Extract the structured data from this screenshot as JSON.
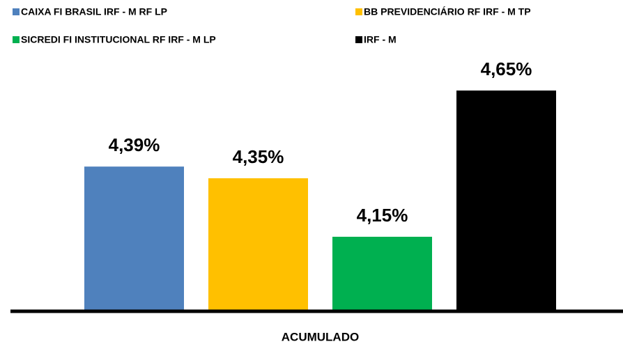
{
  "chart_data": {
    "type": "bar",
    "categories": [
      "ACUMULADO"
    ],
    "series": [
      {
        "name": "CAIXA FI BRASIL IRF - M RF LP",
        "color": "#4f81bd",
        "values": [
          4.39
        ],
        "value_labels": [
          "4,39%"
        ]
      },
      {
        "name": "BB PREVIDENCIÁRIO RF IRF - M TP",
        "color": "#ffc000",
        "values": [
          4.35
        ],
        "value_labels": [
          "4,35%"
        ]
      },
      {
        "name": "SICREDI FI INSTITUCIONAL RF IRF - M LP",
        "color": "#00b050",
        "values": [
          4.15
        ],
        "value_labels": [
          "4,15%"
        ]
      },
      {
        "name": "IRF - M",
        "color": "#000000",
        "values": [
          4.65
        ],
        "value_labels": [
          "4,65%"
        ]
      }
    ],
    "ylim": [
      3.9,
      4.8
    ]
  }
}
